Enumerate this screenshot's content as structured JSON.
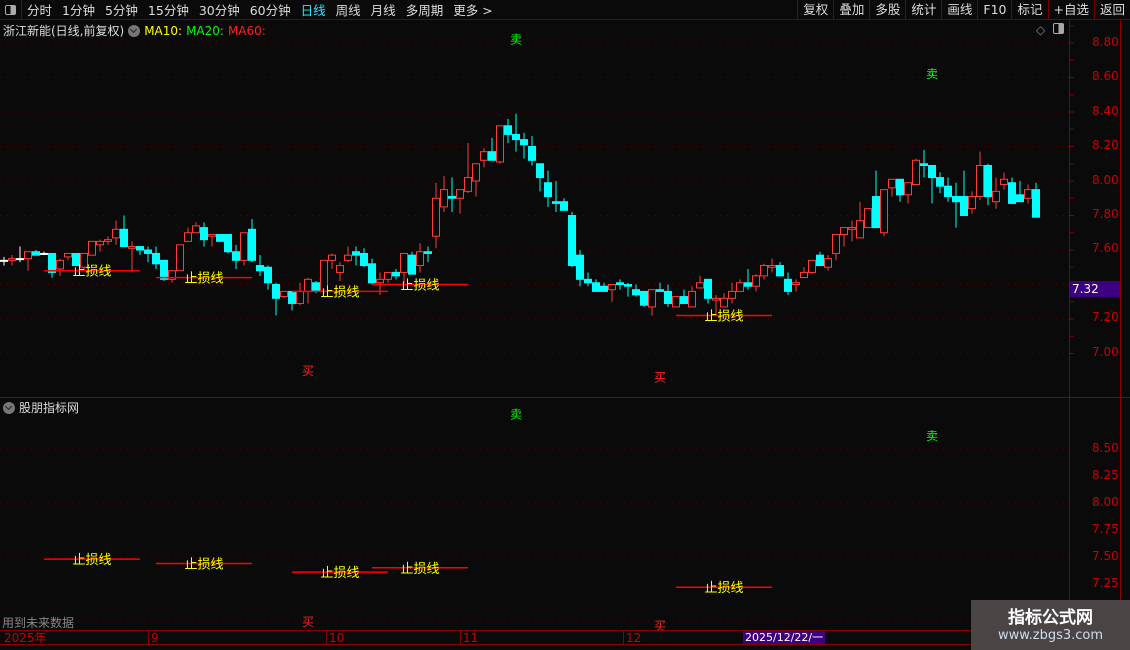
{
  "toolbar": {
    "periods": [
      "分时",
      "1分钟",
      "5分钟",
      "15分钟",
      "30分钟",
      "60分钟",
      "日线",
      "周线",
      "月线",
      "多周期",
      "更多 >"
    ],
    "active_period": "日线",
    "right_buttons": [
      "复权",
      "叠加",
      "多股",
      "统计",
      "画线",
      "F10",
      "标记",
      "+自选",
      "返回"
    ]
  },
  "legend": {
    "stock": "浙江新能(日线,前复权)",
    "ma10": "MA10:",
    "ma20": "MA20:",
    "ma60": "MA60:",
    "ma10_color": "#ffff00",
    "ma20_color": "#00ff00",
    "ma60_color": "#ff0000"
  },
  "indicator": {
    "title": "股朋指标网",
    "future_note": "用到未来数据"
  },
  "price_axis": {
    "labels": [
      "8.80",
      "8.60",
      "8.40",
      "8.20",
      "8.00",
      "7.80",
      "7.60",
      "7.20",
      "7.00"
    ],
    "current_price": "7.32"
  },
  "indicator_axis": {
    "labels": [
      "8.50",
      "8.25",
      "8.00",
      "7.75",
      "7.50",
      "7.25"
    ]
  },
  "time_axis": {
    "labels": [
      "2025年",
      "9",
      "10",
      "11",
      "12"
    ],
    "cursor_date": "2025/12/22/一"
  },
  "watermark": {
    "line1": "指标公式网",
    "line2": "www.zbgs3.com"
  },
  "colors": {
    "up": "#ff3b3b",
    "down": "#00ffff",
    "stop_line": "#ff0000",
    "stop_label": "#ffff00",
    "buy": "#ff2020",
    "sell": "#00ff00"
  },
  "signals": {
    "buy_label": "买",
    "sell_label": "卖",
    "stop_label": "止损线",
    "sells": [
      {
        "index": 64,
        "price": 8.82
      },
      {
        "index": 116,
        "price": 8.62
      }
    ],
    "buys": [
      {
        "index": 38,
        "price": 6.9
      },
      {
        "index": 82,
        "price": 6.86
      }
    ],
    "stop_lines": [
      {
        "from": 5,
        "to": 17,
        "price": 7.48
      },
      {
        "from": 19,
        "to": 31,
        "price": 7.44
      },
      {
        "from": 36,
        "to": 48,
        "price": 7.36
      },
      {
        "from": 46,
        "to": 58,
        "price": 7.4
      },
      {
        "from": 84,
        "to": 96,
        "price": 7.22
      }
    ]
  },
  "chart_data": {
    "type": "candlestick",
    "fields": [
      "open",
      "close",
      "high",
      "low"
    ],
    "ylim": [
      6.85,
      8.92
    ],
    "candles": [
      [
        7.54,
        7.54,
        7.56,
        7.51
      ],
      [
        7.54,
        7.55,
        7.57,
        7.51
      ],
      [
        7.55,
        7.55,
        7.62,
        7.53
      ],
      [
        7.55,
        7.59,
        7.59,
        7.48
      ],
      [
        7.59,
        7.57,
        7.6,
        7.57
      ],
      [
        7.58,
        7.58,
        7.59,
        7.57
      ],
      [
        7.58,
        7.47,
        7.58,
        7.44
      ],
      [
        7.49,
        7.54,
        7.55,
        7.45
      ],
      [
        7.56,
        7.58,
        7.58,
        7.54
      ],
      [
        7.58,
        7.51,
        7.58,
        7.51
      ],
      [
        7.5,
        7.58,
        7.58,
        7.48
      ],
      [
        7.57,
        7.65,
        7.65,
        7.57
      ],
      [
        7.63,
        7.65,
        7.66,
        7.59
      ],
      [
        7.65,
        7.66,
        7.68,
        7.63
      ],
      [
        7.67,
        7.72,
        7.77,
        7.63
      ],
      [
        7.72,
        7.62,
        7.8,
        7.62
      ],
      [
        7.61,
        7.62,
        7.65,
        7.47
      ],
      [
        7.62,
        7.6,
        7.62,
        7.57
      ],
      [
        7.6,
        7.58,
        7.62,
        7.53
      ],
      [
        7.58,
        7.52,
        7.62,
        7.49
      ],
      [
        7.54,
        7.43,
        7.54,
        7.42
      ],
      [
        7.43,
        7.48,
        7.48,
        7.41
      ],
      [
        7.48,
        7.63,
        7.63,
        7.48
      ],
      [
        7.65,
        7.7,
        7.73,
        7.65
      ],
      [
        7.7,
        7.74,
        7.76,
        7.7
      ],
      [
        7.73,
        7.66,
        7.76,
        7.62
      ],
      [
        7.68,
        7.69,
        7.69,
        7.62
      ],
      [
        7.69,
        7.65,
        7.69,
        7.65
      ],
      [
        7.69,
        7.59,
        7.69,
        7.58
      ],
      [
        7.59,
        7.54,
        7.63,
        7.49
      ],
      [
        7.54,
        7.7,
        7.7,
        7.51
      ],
      [
        7.72,
        7.54,
        7.78,
        7.53
      ],
      [
        7.51,
        7.48,
        7.57,
        7.45
      ],
      [
        7.5,
        7.41,
        7.51,
        7.37
      ],
      [
        7.4,
        7.32,
        7.41,
        7.22
      ],
      [
        7.33,
        7.36,
        7.36,
        7.32
      ],
      [
        7.36,
        7.29,
        7.36,
        7.25
      ],
      [
        7.29,
        7.36,
        7.41,
        7.28
      ],
      [
        7.36,
        7.43,
        7.44,
        7.29
      ],
      [
        7.41,
        7.36,
        7.42,
        7.35
      ],
      [
        7.36,
        7.54,
        7.54,
        7.35
      ],
      [
        7.54,
        7.57,
        7.58,
        7.49
      ],
      [
        7.47,
        7.51,
        7.53,
        7.42
      ],
      [
        7.54,
        7.57,
        7.62,
        7.53
      ],
      [
        7.59,
        7.57,
        7.62,
        7.51
      ],
      [
        7.58,
        7.51,
        7.61,
        7.5
      ],
      [
        7.52,
        7.41,
        7.55,
        7.4
      ],
      [
        7.41,
        7.43,
        7.47,
        7.34
      ],
      [
        7.43,
        7.47,
        7.47,
        7.41
      ],
      [
        7.47,
        7.45,
        7.49,
        7.43
      ],
      [
        7.47,
        7.58,
        7.58,
        7.41
      ],
      [
        7.57,
        7.46,
        7.59,
        7.46
      ],
      [
        7.51,
        7.59,
        7.64,
        7.47
      ],
      [
        7.59,
        7.58,
        7.62,
        7.53
      ],
      [
        7.68,
        7.9,
        7.99,
        7.61
      ],
      [
        7.85,
        7.95,
        8.03,
        7.82
      ],
      [
        7.91,
        7.9,
        8.02,
        7.82
      ],
      [
        7.9,
        7.95,
        7.95,
        7.81
      ],
      [
        7.94,
        8.02,
        8.22,
        7.93
      ],
      [
        8.0,
        8.1,
        8.1,
        7.91
      ],
      [
        8.12,
        8.17,
        8.19,
        8.08
      ],
      [
        8.17,
        8.12,
        8.25,
        8.12
      ],
      [
        8.11,
        8.32,
        8.32,
        8.1
      ],
      [
        8.32,
        8.27,
        8.36,
        8.22
      ],
      [
        8.27,
        8.24,
        8.39,
        8.17
      ],
      [
        8.24,
        8.21,
        8.28,
        8.13
      ],
      [
        8.2,
        8.12,
        8.26,
        8.09
      ],
      [
        8.1,
        8.02,
        8.1,
        7.94
      ],
      [
        7.99,
        7.91,
        8.06,
        7.85
      ],
      [
        7.88,
        7.87,
        8.0,
        7.82
      ],
      [
        7.88,
        7.83,
        7.9,
        7.83
      ],
      [
        7.8,
        7.51,
        7.82,
        7.5
      ],
      [
        7.57,
        7.43,
        7.6,
        7.39
      ],
      [
        7.43,
        7.41,
        7.47,
        7.39
      ],
      [
        7.41,
        7.36,
        7.43,
        7.36
      ],
      [
        7.39,
        7.36,
        7.41,
        7.36
      ],
      [
        7.37,
        7.4,
        7.4,
        7.3
      ],
      [
        7.41,
        7.4,
        7.43,
        7.37
      ],
      [
        7.4,
        7.39,
        7.41,
        7.33
      ],
      [
        7.37,
        7.34,
        7.4,
        7.33
      ],
      [
        7.36,
        7.28,
        7.36,
        7.27
      ],
      [
        7.27,
        7.37,
        7.37,
        7.22
      ],
      [
        7.37,
        7.36,
        7.41,
        7.36
      ],
      [
        7.36,
        7.29,
        7.4,
        7.27
      ],
      [
        7.27,
        7.33,
        7.33,
        7.27
      ],
      [
        7.33,
        7.29,
        7.37,
        7.29
      ],
      [
        7.27,
        7.36,
        7.39,
        7.27
      ],
      [
        7.38,
        7.41,
        7.45,
        7.38
      ],
      [
        7.43,
        7.32,
        7.43,
        7.29
      ],
      [
        7.31,
        7.32,
        7.34,
        7.22
      ],
      [
        7.27,
        7.32,
        7.35,
        7.27
      ],
      [
        7.32,
        7.36,
        7.41,
        7.29
      ],
      [
        7.36,
        7.41,
        7.43,
        7.36
      ],
      [
        7.41,
        7.39,
        7.49,
        7.37
      ],
      [
        7.39,
        7.45,
        7.46,
        7.36
      ],
      [
        7.45,
        7.51,
        7.52,
        7.43
      ],
      [
        7.5,
        7.51,
        7.55,
        7.47
      ],
      [
        7.51,
        7.45,
        7.53,
        7.45
      ],
      [
        7.43,
        7.36,
        7.47,
        7.34
      ],
      [
        7.4,
        7.41,
        7.43,
        7.36
      ],
      [
        7.44,
        7.47,
        7.5,
        7.44
      ],
      [
        7.47,
        7.54,
        7.54,
        7.46
      ],
      [
        7.57,
        7.51,
        7.59,
        7.51
      ],
      [
        7.5,
        7.55,
        7.57,
        7.48
      ],
      [
        7.58,
        7.69,
        7.69,
        7.54
      ],
      [
        7.69,
        7.73,
        7.73,
        7.62
      ],
      [
        7.72,
        7.73,
        7.77,
        7.65
      ],
      [
        7.67,
        7.77,
        7.88,
        7.67
      ],
      [
        7.73,
        7.84,
        7.84,
        7.73
      ],
      [
        7.91,
        7.73,
        8.06,
        7.73
      ],
      [
        7.7,
        7.95,
        7.95,
        7.68
      ],
      [
        7.96,
        8.01,
        8.01,
        7.91
      ],
      [
        8.01,
        7.92,
        8.01,
        7.88
      ],
      [
        7.92,
        7.99,
        7.99,
        7.87
      ],
      [
        7.98,
        8.12,
        8.13,
        7.98
      ],
      [
        8.1,
        8.09,
        8.18,
        8.02
      ],
      [
        8.09,
        8.02,
        8.09,
        7.87
      ],
      [
        8.02,
        7.97,
        8.05,
        7.93
      ],
      [
        7.97,
        7.91,
        8.02,
        7.88
      ],
      [
        7.91,
        7.88,
        7.99,
        7.73
      ],
      [
        7.91,
        7.8,
        8.06,
        7.8
      ],
      [
        7.84,
        7.91,
        7.94,
        7.81
      ],
      [
        7.91,
        8.09,
        8.17,
        7.89
      ],
      [
        8.09,
        7.91,
        8.1,
        7.86
      ],
      [
        7.88,
        7.94,
        8.02,
        7.84
      ],
      [
        7.98,
        8.01,
        8.05,
        7.95
      ],
      [
        7.99,
        7.87,
        8.02,
        7.87
      ],
      [
        7.92,
        7.88,
        8.0,
        7.88
      ],
      [
        7.9,
        7.95,
        7.98,
        7.87
      ],
      [
        7.95,
        7.79,
        7.99,
        7.79
      ]
    ]
  }
}
